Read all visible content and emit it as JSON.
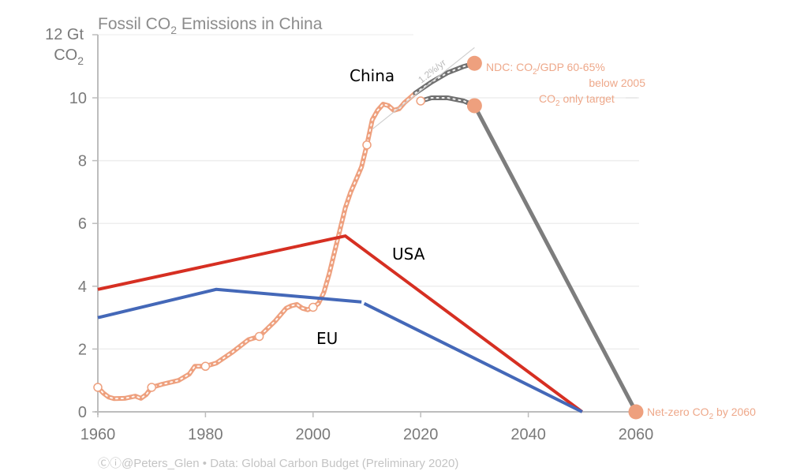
{
  "chart_data": {
    "type": "line",
    "title": "Fossil CO₂ Emissions in China",
    "ylabel_line1": "12 Gt",
    "ylabel_line2": "CO₂",
    "xlabel": "",
    "xlim": [
      1960,
      2060
    ],
    "ylim": [
      0,
      12
    ],
    "grid": true,
    "x_ticks": [
      1960,
      1980,
      2000,
      2020,
      2040,
      2060
    ],
    "x_tick_labels": [
      "1960",
      "1980",
      "2000",
      "2020",
      "2040",
      "2060"
    ],
    "y_ticks": [
      0,
      2,
      4,
      6,
      8,
      10
    ],
    "y_tick_labels": [
      "0",
      "2",
      "4",
      "6",
      "8",
      "10"
    ],
    "series": [
      {
        "name": "China (historical)",
        "label": "China",
        "color": "#eea07e",
        "style": "dotted-thick",
        "x": [
          1960,
          1961,
          1962,
          1963,
          1965,
          1967,
          1968,
          1969,
          1970,
          1972,
          1975,
          1977,
          1978,
          1980,
          1982,
          1985,
          1988,
          1990,
          1993,
          1995,
          1996,
          1997,
          1998,
          1999,
          2000,
          2001,
          2002,
          2003,
          2004,
          2005,
          2006,
          2007,
          2008,
          2009,
          2010,
          2011,
          2012,
          2013,
          2014,
          2015,
          2016,
          2017,
          2018,
          2019
        ],
        "y": [
          0.78,
          0.6,
          0.47,
          0.42,
          0.43,
          0.5,
          0.43,
          0.55,
          0.78,
          0.88,
          1.0,
          1.2,
          1.45,
          1.45,
          1.55,
          1.9,
          2.3,
          2.4,
          2.9,
          3.3,
          3.38,
          3.42,
          3.3,
          3.25,
          3.33,
          3.45,
          3.8,
          4.4,
          5.1,
          5.8,
          6.5,
          7.0,
          7.4,
          7.8,
          8.5,
          9.3,
          9.6,
          9.8,
          9.75,
          9.6,
          9.65,
          9.85,
          10.0,
          10.15
        ],
        "markers_x": [
          1960,
          1970,
          1980,
          1990,
          2000,
          2010,
          2020
        ],
        "markers_y": [
          0.78,
          0.78,
          1.45,
          2.4,
          3.33,
          8.5,
          9.9
        ]
      },
      {
        "name": "NDC projection",
        "color": "#707070",
        "style": "dotted-thick",
        "x": [
          2019,
          2022,
          2025,
          2028,
          2030
        ],
        "y": [
          10.15,
          10.5,
          10.8,
          11.0,
          11.1
        ]
      },
      {
        "name": "CO₂ only target projection",
        "color": "#707070",
        "style": "dotted-thick",
        "x": [
          2020,
          2022,
          2025,
          2028,
          2030
        ],
        "y": [
          9.9,
          10.0,
          10.0,
          9.9,
          9.75
        ]
      },
      {
        "name": "Net-zero pathway",
        "color": "#7d7d7d",
        "style": "solid",
        "x": [
          2030,
          2060
        ],
        "y": [
          9.75,
          0
        ]
      },
      {
        "name": "1.2%/yr trend",
        "label": "1.2%/yr",
        "color": "#cfcfcf",
        "style": "thin",
        "x": [
          2011,
          2030
        ],
        "y": [
          9.0,
          11.6
        ]
      },
      {
        "name": "USA",
        "label": "USA",
        "color": "#d62f22",
        "style": "solid",
        "x": [
          1960,
          2006,
          2050
        ],
        "y": [
          3.9,
          5.6,
          0
        ]
      },
      {
        "name": "EU",
        "label": "EU",
        "color": "#4468b8",
        "style": "solid",
        "segments": [
          {
            "x": [
              1960,
              1982,
              2009
            ],
            "y": [
              3.0,
              3.9,
              3.5
            ]
          },
          {
            "x": [
              2009.5,
              2050
            ],
            "y": [
              3.45,
              0
            ]
          }
        ]
      }
    ],
    "target_points": [
      {
        "name": "NDC target",
        "x": 2030,
        "y": 11.1,
        "label_line1": "NDC: CO₂/GDP 60-65%",
        "label_line2": "below 2005"
      },
      {
        "name": "CO₂ only target",
        "x": 2030,
        "y": 9.75,
        "label_line1": "CO₂ only target"
      },
      {
        "name": "Net-zero",
        "x": 2060,
        "y": 0,
        "label_line1": "Net-zero CO₂ by 2060"
      }
    ],
    "credit": "Ⓒⓘ@Peters_Glen  •  Data: Global Carbon Budget (Preliminary 2020)"
  },
  "colors": {
    "china": "#eea07e",
    "usa": "#d62f22",
    "eu": "#4468b8",
    "projection": "#707070",
    "axis": "#bdbdbd",
    "grid": "#eeeeee"
  }
}
